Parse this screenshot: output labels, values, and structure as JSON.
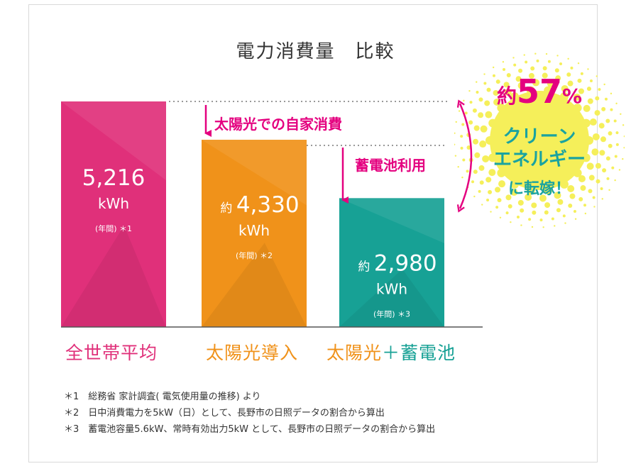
{
  "title": "電力消費量　比較",
  "chart_data": {
    "type": "bar",
    "categories": [
      "全世帯平均",
      "太陽光導入",
      "太陽光＋蓄電池"
    ],
    "values": [
      5216,
      4330,
      2980
    ],
    "unit": "kWh",
    "ylim": [
      0,
      5216
    ],
    "bars": [
      {
        "prefix": "",
        "value_label": "5,216",
        "unit": "kWh",
        "note": "(年間) ＊1",
        "color": "#e0307a"
      },
      {
        "prefix": "約",
        "value_label": "4,330",
        "unit": "kWh",
        "note": "(年間) ＊2",
        "color": "#f0921a"
      },
      {
        "prefix": "約",
        "value_label": "2,980",
        "unit": "kWh",
        "note": "(年間) ＊3",
        "color": "#17a195"
      }
    ],
    "category_colors": [
      "#e0307a",
      "#f0921a",
      "#17a195"
    ],
    "annotations": {
      "solar_self": "太陽光での自家消費",
      "battery_use": "蓄電池利用"
    }
  },
  "category_parts": {
    "solar": "太陽光",
    "plus": "＋",
    "battery": "蓄電池"
  },
  "badge": {
    "prefix": "約",
    "number": "57",
    "percent": "%",
    "line1": "クリーン",
    "line2": "エネルギー",
    "line3": "に転嫁！"
  },
  "notes": [
    "＊1　総務省 家計調査( 電気使用量の推移) より",
    "＊2　日中消費電力を5kW（日）として、長野市の日照データの割合から算出",
    "＊3　蓄電池容量5.6kW、常時有効出力5kW として、長野市の日照データの割合から算出"
  ],
  "colors": {
    "pink": "#e0307a",
    "orange": "#f0921a",
    "teal": "#17a195",
    "accent": "#e4007f",
    "badge_yellow": "#f5ef5a",
    "badge_text_teal": "#1aa3a0"
  }
}
